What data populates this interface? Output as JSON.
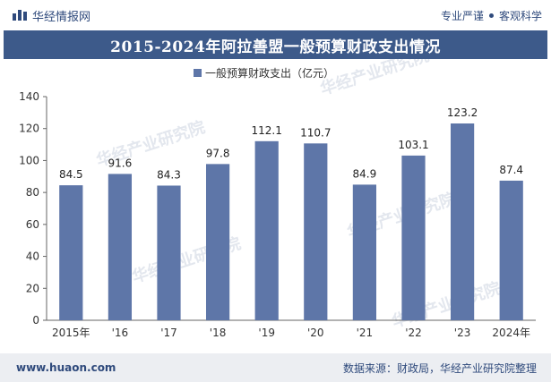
{
  "header": {
    "brand": "华经情报网",
    "tag1": "专业严谨",
    "tag2": "客观科学"
  },
  "title": "2015-2024年阿拉善盟一般预算财政支出情况",
  "footer": {
    "website": "www.huaon.com",
    "source": "数据来源：财政局，华经产业研究院整理"
  },
  "watermark": "华经产业研究院",
  "colors": {
    "bar": "#5e76a8",
    "title_bg": "#3d5a8a",
    "text": "#2f4a7c"
  },
  "chart_data": {
    "type": "bar",
    "categories": [
      "2015年",
      "'16",
      "'17",
      "'18",
      "'19",
      "'20",
      "'21",
      "'22",
      "'23",
      "2024年"
    ],
    "series": [
      {
        "name": "一般预算财政支出（亿元）",
        "values": [
          84.5,
          91.6,
          84.3,
          97.8,
          112.1,
          110.7,
          84.9,
          103.1,
          123.2,
          87.4
        ]
      }
    ],
    "ylim": [
      0,
      140
    ],
    "yticks": [
      0,
      20,
      40,
      60,
      80,
      100,
      120,
      140
    ],
    "legend": "top-center",
    "grid": false
  }
}
